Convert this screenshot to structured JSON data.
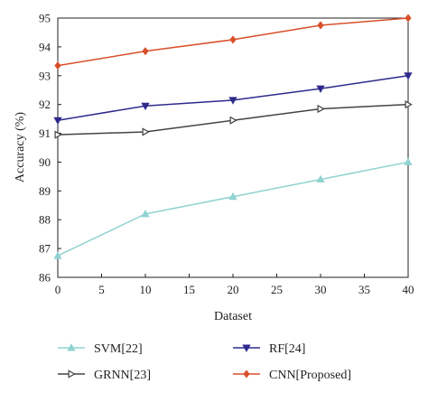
{
  "chart_data": {
    "type": "line",
    "title": "",
    "xlabel": "Dataset",
    "ylabel": "Accuracy (%)",
    "xlim": [
      0,
      40
    ],
    "ylim": [
      86,
      95
    ],
    "x_ticks": [
      "0",
      "5",
      "10",
      "15",
      "20",
      "25",
      "30",
      "35",
      "40"
    ],
    "y_ticks": [
      "86",
      "87",
      "88",
      "89",
      "90",
      "91",
      "92",
      "93",
      "94",
      "95"
    ],
    "grid": false,
    "legend_position": "bottom",
    "x": [
      0,
      10,
      20,
      30,
      40
    ],
    "series": [
      {
        "name": "SVM[22]",
        "color": "#8fd3d0",
        "marker": "triangle-up",
        "values": [
          86.75,
          88.2,
          88.8,
          89.4,
          90.0
        ]
      },
      {
        "name": "RF[24]",
        "color": "#2e2a8c",
        "marker": "triangle-down",
        "values": [
          91.45,
          91.95,
          92.15,
          92.55,
          93.0
        ]
      },
      {
        "name": "GRNN[23]",
        "color": "#444444",
        "marker": "triangle-right",
        "values": [
          90.95,
          91.05,
          91.45,
          91.85,
          92.0
        ]
      },
      {
        "name": "CNN[Proposed]",
        "color": "#d9502a",
        "marker": "diamond",
        "values": [
          93.35,
          93.85,
          94.25,
          94.75,
          95.0
        ]
      }
    ]
  }
}
